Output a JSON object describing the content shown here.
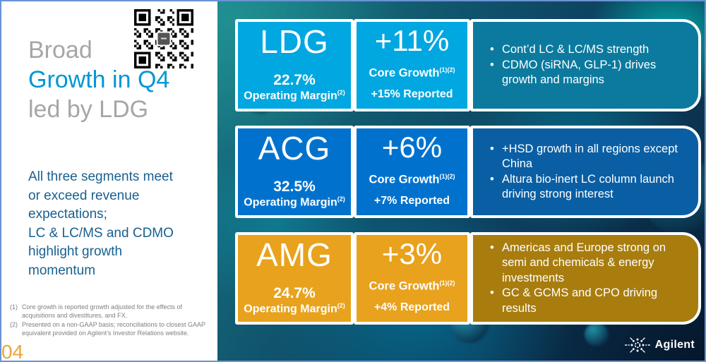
{
  "slide": {
    "title": {
      "line1": "Broad",
      "line2": "Growth in Q4",
      "line3": "led by LDG"
    },
    "summary": "All three segments meet\nor exceed revenue\nexpectations;\nLC & LC/MS and CDMO\nhighlight growth\nmomentum",
    "footnotes": [
      {
        "num": "(1)",
        "text": "Core growth is reported growth adjusted for the effects of acquisitions and divestitures, and FX."
      },
      {
        "num": "(2)",
        "text": "Presented on a non-GAAP basis; reconciliations to closest GAAP equivalent provided on Agilent’s Investor Relations website."
      }
    ],
    "page_number": "04",
    "logo_text": "Agilent"
  },
  "labels": {
    "operating_margin": "Operating Margin",
    "operating_margin_sup": "(2)",
    "core_growth": "Core Growth",
    "core_growth_sup": "(1)(2)",
    "bullet": "•"
  },
  "segments": [
    {
      "name": "LDG",
      "operating_margin": "22.7%",
      "core_growth": "+11%",
      "reported": "+15% Reported",
      "card_color": "#00A7E0",
      "panel_color": "#0C7A9E",
      "bullets": [
        "Cont’d LC & LC/MS strength",
        "CDMO (siRNA, GLP-1) drives growth and margins"
      ]
    },
    {
      "name": "ACG",
      "operating_margin": "32.5%",
      "core_growth": "+6%",
      "reported": "+7% Reported",
      "card_color": "#0072CE",
      "panel_color": "#0A5FA4",
      "bullets": [
        "+HSD growth in all regions except China",
        "Altura bio-inert LC column launch driving strong interest"
      ]
    },
    {
      "name": "AMG",
      "operating_margin": "24.7%",
      "core_growth": "+3%",
      "reported": "+4% Reported",
      "card_color": "#E8A21D",
      "panel_color": "#A87D0E",
      "bullets": [
        "Americas and Europe strong on semi and chemicals & energy investments",
        "GC & GCMS and CPO driving results"
      ]
    }
  ],
  "colors": {
    "accent_blue": "#0096D6",
    "title_gray": "#A6A6A6",
    "body_text": "#19608F",
    "footnote_gray": "#7F7F7F",
    "page_number_orange": "#E9A63B",
    "slide_border": "#6A93D4",
    "box_border_white": "#FFFFFF"
  }
}
